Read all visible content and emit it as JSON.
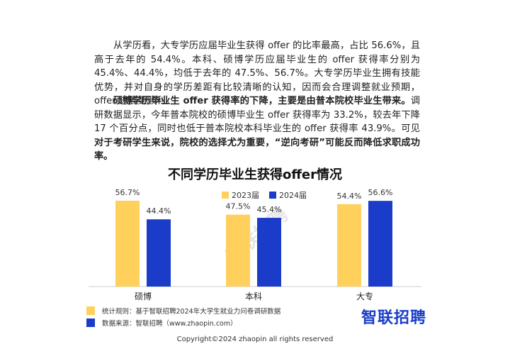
{
  "paragraph1": {
    "text": "从学历看，大专学历应届毕业生获得 offer 的比率最高，占比 56.6%，且高于去年的 54.4%。本科、硕博学历应届毕业生的 offer 获得率分别为 45.4%、44.4%，均低于去年的 47.5%、56.7%。大专学历毕业生拥有技能优势，并对自身的学历差距有比较清晰的认知，因而会合理调整就业预期，offer 进展更顺利。"
  },
  "paragraph2": {
    "bold_lead": "硕博学历毕业生 offer 获得率的下降，主要是由普本院校毕业生带来。",
    "body": "调研数据显示，今年普本院校的硕博毕业生 offer 获得率为 33.2%，较去年下降 17 个百分点，同时也低于普本院校本科毕业生的 offer 获得率 43.9%。可见",
    "bold_tail": "对于考研学生来说，院校的选择尤为重要，“逆向考研”可能反而降低求职成功率。"
  },
  "chart_data": {
    "type": "bar",
    "title": "不同学历毕业生获得offer情况",
    "categories": [
      "硕博",
      "本科",
      "大专"
    ],
    "series": [
      {
        "name": "2023届",
        "values": [
          56.7,
          47.5,
          54.4
        ],
        "labels": [
          "56.7%",
          "47.5%",
          "54.4%"
        ],
        "color": "#FFD15C"
      },
      {
        "name": "2024届",
        "values": [
          44.4,
          45.4,
          56.6
        ],
        "labels": [
          "44.4%",
          "45.4%",
          "56.6%"
        ],
        "color": "#1A3CC8"
      }
    ],
    "ylim": [
      0,
      60
    ],
    "grid": false,
    "legend": "top-center"
  },
  "notes": {
    "stat_label": "统计规则：",
    "stat_text": "基于智联招聘2024年大学生就业力问卷调研数据",
    "source_label": "数据来源：",
    "source_text": "智联招聘（www.zhaopin.com）"
  },
  "logo_text": "智联招聘",
  "watermark_text": "智联招聘",
  "copyright": "Copyright©2024 zhaopin all rights reserved"
}
